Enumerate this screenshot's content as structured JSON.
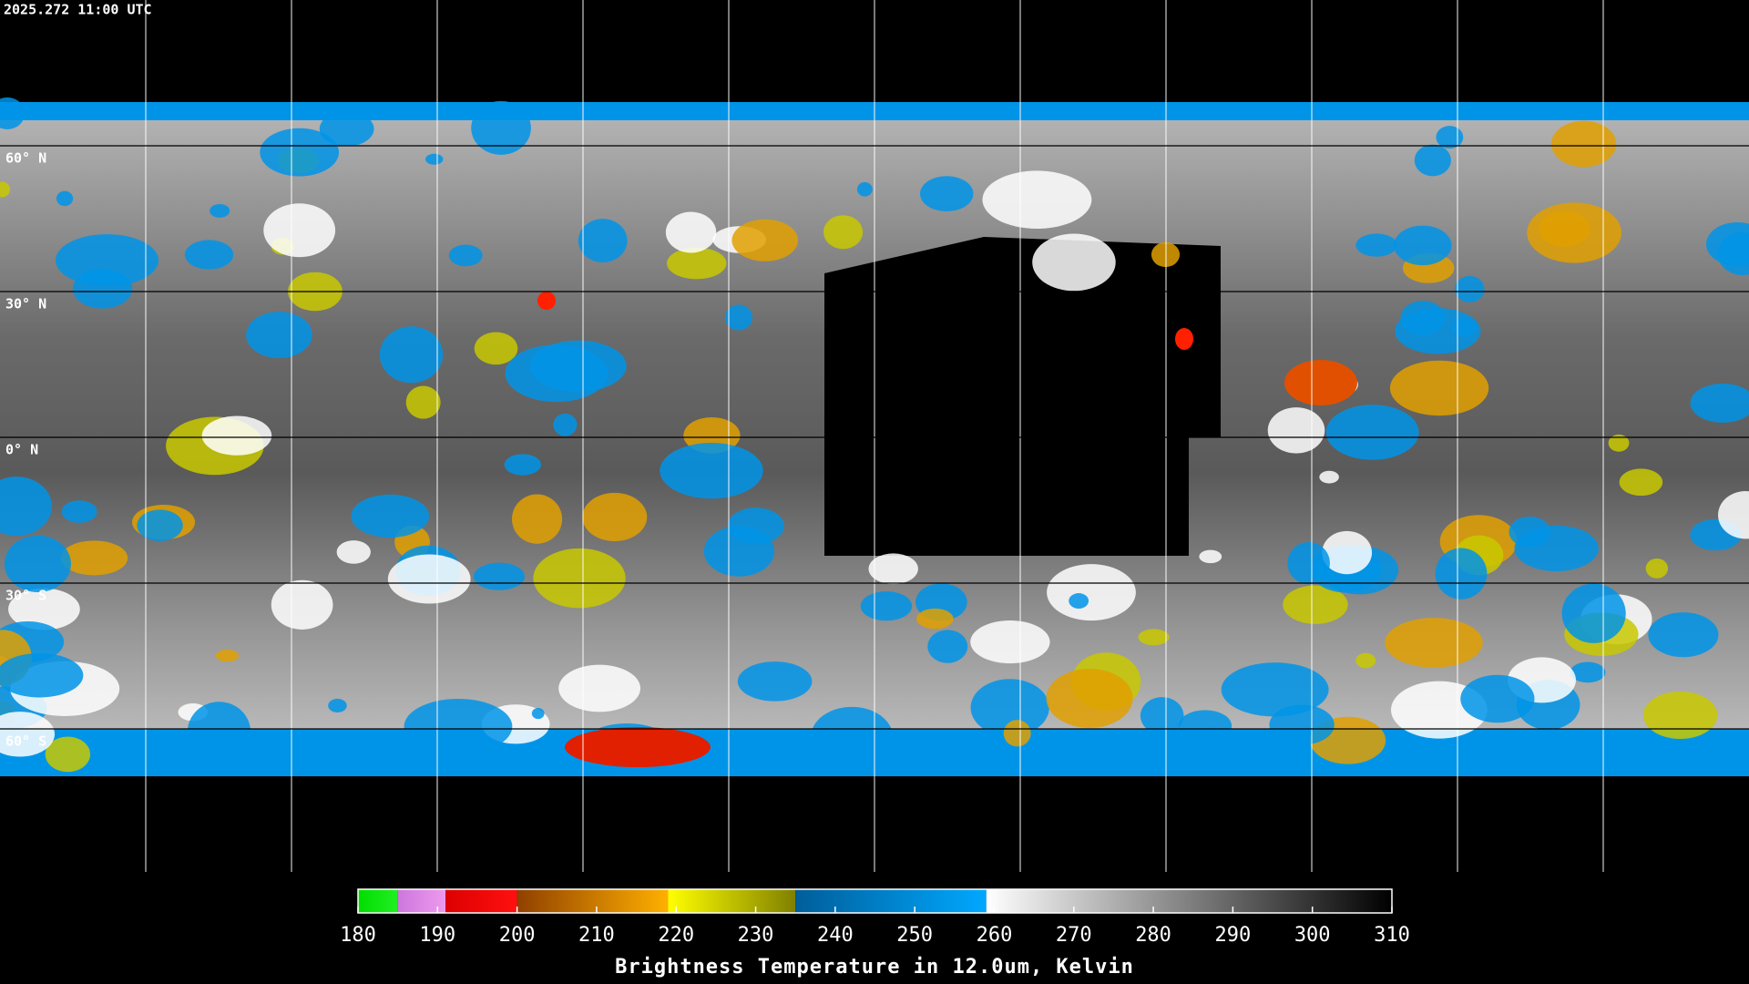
{
  "header": {
    "timestamp": "2025.272 11:00 UTC"
  },
  "map": {
    "latitude_labels": [
      "60° N",
      "30° N",
      "0° N",
      "30° S",
      "60° S"
    ]
  },
  "colorbar": {
    "title": "Brightness Temperature in 12.0um, Kelvin",
    "range": [
      180,
      310
    ],
    "ticks": [
      180,
      190,
      200,
      210,
      220,
      230,
      240,
      250,
      260,
      270,
      280,
      290,
      300,
      310
    ],
    "segments": [
      {
        "from": 180,
        "to": 185,
        "colors": [
          "#00dd00",
          "#22ee22"
        ]
      },
      {
        "from": 185,
        "to": 191,
        "colors": [
          "#cc77dd",
          "#ee99ee"
        ]
      },
      {
        "from": 191,
        "to": 200,
        "colors": [
          "#dd0000",
          "#ff1010"
        ]
      },
      {
        "from": 200,
        "to": 219,
        "colors": [
          "#904000",
          "#ffb000"
        ]
      },
      {
        "from": 219,
        "to": 235,
        "colors": [
          "#ffff00",
          "#808000"
        ]
      },
      {
        "from": 235,
        "to": 259,
        "colors": [
          "#005e9a",
          "#00a8ff"
        ]
      },
      {
        "from": 259,
        "to": 310,
        "colors": [
          "#ffffff",
          "#000000"
        ]
      }
    ]
  }
}
